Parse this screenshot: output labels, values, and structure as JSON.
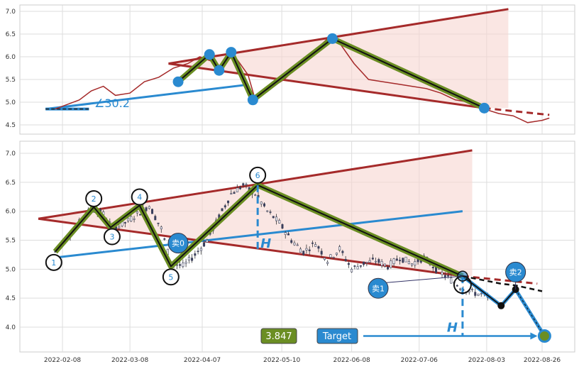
{
  "chart_data": [
    {
      "type": "line",
      "panel": "top",
      "ylim": [
        4.3,
        7.2
      ],
      "yticks": [
        4.5,
        5.0,
        5.5,
        6.0,
        6.5,
        7.0
      ],
      "grid": true,
      "angle_label": "∠30.2",
      "series": [
        {
          "values": [
            [
              "2022-02-05",
              4.85
            ],
            [
              "2022-02-10",
              4.95
            ],
            [
              "2022-02-15",
              5.05
            ],
            [
              "2022-02-20",
              5.25
            ],
            [
              "2022-02-25",
              5.35
            ],
            [
              "2022-03-02",
              5.15
            ],
            [
              "2022-03-08",
              5.2
            ],
            [
              "2022-03-14",
              5.45
            ],
            [
              "2022-03-20",
              5.55
            ],
            [
              "2022-03-26",
              5.75
            ],
            [
              "2022-04-01",
              5.85
            ],
            [
              "2022-04-06",
              6.0
            ],
            [
              "2022-04-11",
              5.9
            ],
            [
              "2022-04-14",
              5.7
            ],
            [
              "2022-04-20",
              6.05
            ],
            [
              "2022-04-26",
              5.6
            ],
            [
              "2022-04-29",
              5.05
            ],
            [
              "2022-05-05",
              5.3
            ],
            [
              "2022-05-11",
              5.5
            ],
            [
              "2022-05-17",
              5.8
            ],
            [
              "2022-05-23",
              6.1
            ],
            [
              "2022-05-29",
              6.4
            ],
            [
              "2022-06-03",
              6.3
            ],
            [
              "2022-06-09",
              5.85
            ],
            [
              "2022-06-15",
              5.5
            ],
            [
              "2022-06-21",
              5.45
            ],
            [
              "2022-06-27",
              5.4
            ],
            [
              "2022-07-03",
              5.35
            ],
            [
              "2022-07-09",
              5.3
            ],
            [
              "2022-07-15",
              5.2
            ],
            [
              "2022-07-21",
              5.05
            ],
            [
              "2022-07-27",
              5.0
            ],
            [
              "2022-08-02",
              4.85
            ],
            [
              "2022-08-08",
              4.75
            ],
            [
              "2022-08-14",
              4.7
            ],
            [
              "2022-08-20",
              4.55
            ],
            [
              "2022-08-26",
              4.6
            ],
            [
              "2022-08-29",
              4.65
            ]
          ]
        }
      ],
      "pivots": [
        [
          "2022-03-28",
          5.45
        ],
        [
          "2022-04-10",
          6.05
        ],
        [
          "2022-04-14",
          5.7
        ],
        [
          "2022-04-19",
          6.1
        ],
        [
          "2022-04-28",
          5.05
        ],
        [
          "2022-05-31",
          6.4
        ],
        [
          "2022-08-02",
          4.87
        ]
      ],
      "triangle": {
        "upper": [
          [
            "2022-03-24",
            5.85
          ],
          [
            "2022-08-12",
            7.05
          ]
        ],
        "lower": [
          [
            "2022-03-24",
            5.85
          ],
          [
            "2022-08-02",
            4.87
          ]
        ],
        "lower_ext": [
          [
            "2022-08-02",
            4.87
          ],
          [
            "2022-08-29",
            4.72
          ]
        ]
      },
      "support_line": [
        [
          "2022-02-01",
          4.85
        ],
        [
          "2022-04-25",
          5.38
        ]
      ],
      "base_line": [
        [
          "2022-02-01",
          4.85
        ],
        [
          "2022-02-19",
          4.85
        ]
      ]
    },
    {
      "type": "candlestick",
      "panel": "bottom",
      "ylim": [
        3.5,
        7.25
      ],
      "yticks": [
        4.0,
        4.5,
        5.0,
        5.5,
        6.0,
        6.5,
        7.0
      ],
      "xticks": [
        "2022-02-08",
        "2022-03-08",
        "2022-04-07",
        "2022-05-10",
        "2022-06-08",
        "2022-07-06",
        "2022-08-03",
        "2022-08-26"
      ],
      "grid": true,
      "close_path": [
        [
          "2022-02-05",
          5.3
        ],
        [
          "2022-02-10",
          5.55
        ],
        [
          "2022-02-15",
          5.8
        ],
        [
          "2022-02-20",
          6.05
        ],
        [
          "2022-02-25",
          5.95
        ],
        [
          "2022-03-01",
          5.7
        ],
        [
          "2022-03-06",
          5.8
        ],
        [
          "2022-03-11",
          5.95
        ],
        [
          "2022-03-16",
          6.1
        ],
        [
          "2022-03-21",
          5.7
        ],
        [
          "2022-03-25",
          5.1
        ],
        [
          "2022-03-30",
          5.05
        ],
        [
          "2022-04-04",
          5.25
        ],
        [
          "2022-04-09",
          5.5
        ],
        [
          "2022-04-14",
          5.9
        ],
        [
          "2022-04-19",
          6.3
        ],
        [
          "2022-04-24",
          6.45
        ],
        [
          "2022-04-29",
          6.3
        ],
        [
          "2022-05-04",
          6.0
        ],
        [
          "2022-05-09",
          5.8
        ],
        [
          "2022-05-14",
          5.5
        ],
        [
          "2022-05-19",
          5.3
        ],
        [
          "2022-05-24",
          5.45
        ],
        [
          "2022-05-29",
          5.15
        ],
        [
          "2022-06-03",
          5.35
        ],
        [
          "2022-06-08",
          5.0
        ],
        [
          "2022-06-13",
          5.1
        ],
        [
          "2022-06-18",
          5.15
        ],
        [
          "2022-06-23",
          5.05
        ],
        [
          "2022-06-28",
          5.2
        ],
        [
          "2022-07-03",
          5.1
        ],
        [
          "2022-07-08",
          5.2
        ],
        [
          "2022-07-13",
          5.0
        ],
        [
          "2022-07-18",
          4.85
        ],
        [
          "2022-07-23",
          4.7
        ],
        [
          "2022-07-28",
          4.6
        ],
        [
          "2022-08-02",
          4.55
        ],
        [
          "2022-08-05",
          4.45
        ]
      ],
      "pivots": [
        {
          "label": "1",
          "date": "2022-02-05",
          "value": 5.3
        },
        {
          "label": "2",
          "date": "2022-02-21",
          "value": 6.07
        },
        {
          "label": "3",
          "date": "2022-02-28",
          "value": 5.72
        },
        {
          "label": "4",
          "date": "2022-03-12",
          "value": 6.1
        },
        {
          "label": "5",
          "date": "2022-03-25",
          "value": 5.05
        },
        {
          "label": "6",
          "date": "2022-04-30",
          "value": 6.45
        }
      ],
      "triangle": {
        "upper": [
          [
            "2022-01-29",
            5.87
          ],
          [
            "2022-07-28",
            7.05
          ]
        ],
        "lower": [
          [
            "2022-01-29",
            5.87
          ],
          [
            "2022-07-24",
            4.88
          ]
        ],
        "lower_ext": [
          [
            "2022-07-24",
            4.88
          ],
          [
            "2022-08-24",
            4.75
          ]
        ]
      },
      "support_line": [
        [
          "2022-02-05",
          5.2
        ],
        [
          "2022-07-24",
          6.0
        ]
      ],
      "breakout_line": [
        [
          "2022-07-24",
          4.88
        ],
        [
          "2022-08-09",
          4.75
        ],
        [
          "2022-08-15",
          4.72
        ],
        [
          "2022-08-26",
          4.62
        ]
      ],
      "trade_path": [
        [
          "2022-07-24",
          4.88
        ],
        [
          "2022-08-09",
          4.37
        ],
        [
          "2022-08-15",
          4.65
        ],
        [
          "2022-08-27",
          3.847
        ]
      ],
      "height_marker": {
        "label": "H",
        "x": "2022-04-30",
        "from": 6.45,
        "to": 5.35
      },
      "height_marker_2": {
        "label": "H",
        "x": "2022-07-24",
        "from": 4.88,
        "to": 3.847
      },
      "signals": [
        {
          "label": "卖0",
          "date": "2022-03-28",
          "value": 5.45
        },
        {
          "label": "卖1",
          "date": "2022-06-19",
          "value": 4.67
        },
        {
          "label": "卖2",
          "date": "2022-08-15",
          "value": 4.95
        }
      ],
      "target_value": "3.847",
      "target_label": "Target"
    }
  ]
}
